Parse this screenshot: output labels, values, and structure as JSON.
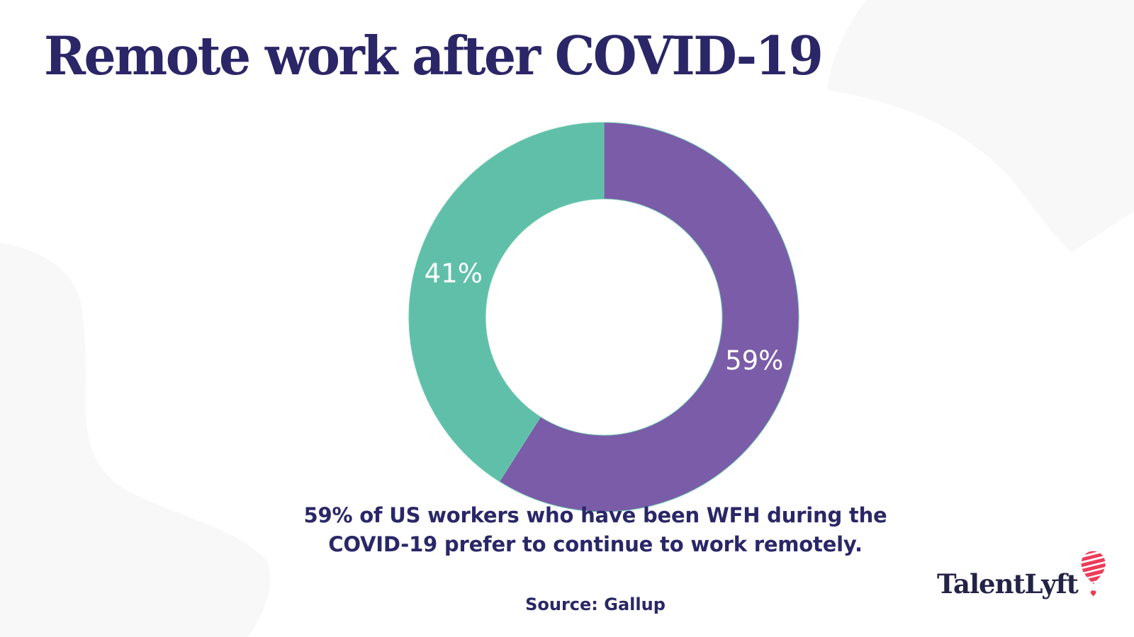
{
  "page": {
    "background": "#ffffff",
    "blob_color": "#f8f8f9"
  },
  "title": {
    "text": "Remote work after COVID-19",
    "color": "#2b2667"
  },
  "chart_data": {
    "type": "pie",
    "donut": true,
    "title": "Remote work after COVID-19",
    "segments": [
      {
        "label": "59%",
        "value": 59,
        "color": "#7b5ca8"
      },
      {
        "label": "41%",
        "value": 41,
        "color": "#60bfa8"
      }
    ],
    "start_angle_deg": 0,
    "direction": "clockwise",
    "label_color": "#ffffff",
    "outline_color": "#6fc9b1",
    "outer_radius": 275,
    "inner_radius": 167,
    "legend": "none",
    "grid": false
  },
  "caption": {
    "line1": "59% of US workers who have been WFH during the",
    "line2": "COVID-19 prefer to continue to work remotely.",
    "color": "#2a2767"
  },
  "source": {
    "text": "Source: Gallup"
  },
  "logo": {
    "text": "TalentLyft",
    "text_color": "#232347",
    "accent_color": "#ee3b58",
    "icon": "hot-air-balloon-icon"
  }
}
